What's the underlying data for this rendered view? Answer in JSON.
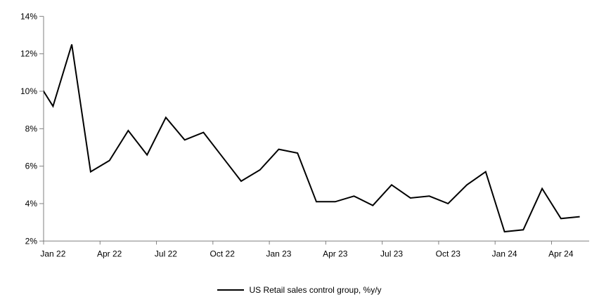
{
  "chart_data": {
    "type": "line",
    "title": "",
    "background": "#ffffff",
    "axis_color": "#808080",
    "label_color": "#000000",
    "grid": false,
    "ylim": [
      2,
      14
    ],
    "y_tick_step": 2,
    "y_tick_labels": [
      "2%",
      "4%",
      "6%",
      "8%",
      "10%",
      "12%",
      "14%"
    ],
    "x_tick_labels": [
      "Jan 22",
      "Apr 22",
      "Jul 22",
      "Oct 22",
      "Jan 23",
      "Apr 23",
      "Jul 23",
      "Oct 23",
      "Jan 24",
      "Apr 24"
    ],
    "x_label_interval_months": 3,
    "legend": {
      "label": "US Retail sales control group, %y/y",
      "position": "bottom-center",
      "line_color": "#000000"
    },
    "series": [
      {
        "name": "US Retail sales control group, %y/y",
        "color": "#000000",
        "line_width": 2,
        "clipped_lead_points": 1,
        "note": "Dec 21 point sits left of the plot edge; its segment enters the plot clipped at the y-axis at about 10%.",
        "months": [
          "Dec 21",
          "Jan 22",
          "Feb 22",
          "Mar 22",
          "Apr 22",
          "May 22",
          "Jun 22",
          "Jul 22",
          "Aug 22",
          "Sep 22",
          "Oct 22",
          "Nov 22",
          "Dec 22",
          "Jan 23",
          "Feb 23",
          "Mar 23",
          "Apr 23",
          "May 23",
          "Jun 23",
          "Jul 23",
          "Aug 23",
          "Sep 23",
          "Oct 23",
          "Nov 23",
          "Dec 23",
          "Jan 24",
          "Feb 24",
          "Mar 24",
          "Apr 24",
          "May 24"
        ],
        "values": [
          10.8,
          9.2,
          12.5,
          5.7,
          6.3,
          7.9,
          6.6,
          8.6,
          7.4,
          7.8,
          6.5,
          5.2,
          5.8,
          6.9,
          6.7,
          4.1,
          4.1,
          4.4,
          3.9,
          5.0,
          4.3,
          4.4,
          4.0,
          5.0,
          5.7,
          2.5,
          2.6,
          4.8,
          3.2,
          3.3
        ]
      }
    ]
  }
}
